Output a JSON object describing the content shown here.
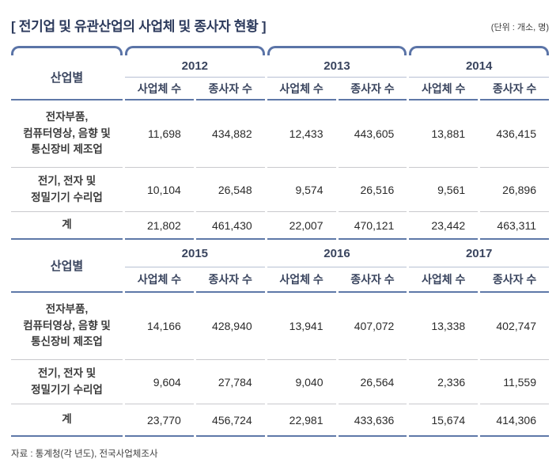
{
  "title": "[ 전기업 및 유관산업의 사업체 및 종사자 현황 ]",
  "unit_note": "(단위 : 개소, 명)",
  "source": "자료 : 통계청(각 년도), 전국사업체조사",
  "industry_col_header": "산업별",
  "subheaders": [
    "사업체 수",
    "종사자 수"
  ],
  "colors": {
    "accent": "#5b74a7",
    "line_blue": "#5e78a8",
    "line_gray": "#c9c9cd",
    "line_year": "#b7c0d3",
    "header_text": "#39445e",
    "title_text": "#2c3a5c",
    "body_text": "#2b2b2b",
    "label_text": "#3b3b3b",
    "note_text": "#3c3c3c"
  },
  "chart_data": {
    "type": "table",
    "title": "전기업 및 유관산업의 사업체 및 종사자 현황",
    "unit": "개소, 명",
    "sections": [
      {
        "years": [
          "2012",
          "2013",
          "2014"
        ],
        "rows": [
          {
            "label": "전자부품,\n컴퓨터영상, 음향 및\n통신장비 제조업",
            "values": [
              "11,698",
              "434,882",
              "12,433",
              "443,605",
              "13,881",
              "436,415"
            ]
          },
          {
            "label": "전기, 전자 및\n정밀기기 수리업",
            "values": [
              "10,104",
              "26,548",
              "9,574",
              "26,516",
              "9,561",
              "26,896"
            ]
          },
          {
            "label": "계",
            "values": [
              "21,802",
              "461,430",
              "22,007",
              "470,121",
              "23,442",
              "463,311"
            ]
          }
        ]
      },
      {
        "years": [
          "2015",
          "2016",
          "2017"
        ],
        "rows": [
          {
            "label": "전자부품,\n컴퓨터영상, 음향 및\n통신장비 제조업",
            "values": [
              "14,166",
              "428,940",
              "13,941",
              "407,072",
              "13,338",
              "402,747"
            ]
          },
          {
            "label": "전기, 전자 및\n정밀기기 수리업",
            "values": [
              "9,604",
              "27,784",
              "9,040",
              "26,564",
              "2,336",
              "11,559"
            ]
          },
          {
            "label": "계",
            "values": [
              "23,770",
              "456,724",
              "22,981",
              "433,636",
              "15,674",
              "414,306"
            ]
          }
        ]
      }
    ]
  }
}
